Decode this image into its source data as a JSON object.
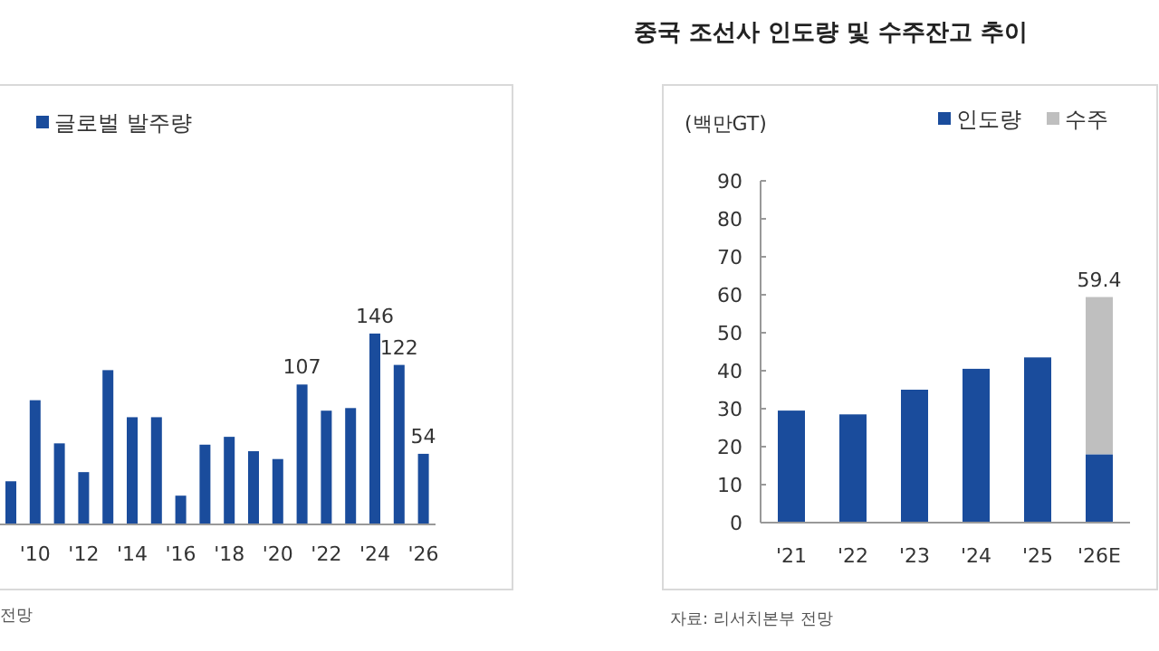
{
  "chart_data": [
    {
      "type": "bar",
      "categories": [
        null,
        "'10",
        null,
        "'12",
        null,
        "'14",
        null,
        "'16",
        null,
        "'18",
        null,
        "'20",
        null,
        "'22",
        null,
        "'24",
        null,
        "'26"
      ],
      "series": [
        {
          "name": "글로벌 발주량",
          "color": "#1a4c9c",
          "values": [
            33,
            95,
            62,
            40,
            118,
            82,
            82,
            22,
            61,
            67,
            56,
            50,
            107,
            87,
            89,
            146,
            122,
            54
          ],
          "value_labels": [
            null,
            null,
            null,
            null,
            null,
            null,
            null,
            null,
            null,
            null,
            null,
            null,
            "107",
            null,
            null,
            "146",
            "122",
            "54"
          ]
        }
      ],
      "legend": "top left",
      "grid": false,
      "annotations": [
        "전망"
      ]
    },
    {
      "type": "bar",
      "title": "중국 조선사 인도량 및 수주잔고 추이",
      "ylabel": "(백만GT)",
      "categories": [
        "'21",
        "'22",
        "'23",
        "'24",
        "'25",
        "'26E"
      ],
      "stacked": true,
      "series": [
        {
          "name": "인도량",
          "color": "#1a4c9c",
          "values": [
            29.5,
            28.5,
            35,
            40.5,
            43.5,
            18
          ]
        },
        {
          "name": "수주",
          "color": "#bfbfbf",
          "values": [
            null,
            null,
            null,
            null,
            null,
            41.4
          ]
        }
      ],
      "totals": [
        null,
        null,
        null,
        null,
        null,
        "59.4"
      ],
      "ylim": [
        0,
        90
      ],
      "yticks": [
        0,
        10,
        20,
        30,
        40,
        50,
        60,
        70,
        80,
        90
      ],
      "legend": "top",
      "grid": false,
      "annotations": [
        "자료: 리서치본부 전망"
      ]
    }
  ]
}
